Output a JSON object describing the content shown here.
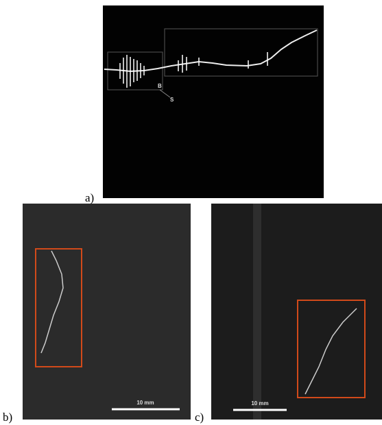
{
  "panels": [
    {
      "label": "a)",
      "annotations": [
        "B",
        "S"
      ]
    },
    {
      "label": "b)",
      "scale_bar": "10 mm"
    },
    {
      "label": "c)",
      "scale_bar": "10 mm"
    }
  ]
}
